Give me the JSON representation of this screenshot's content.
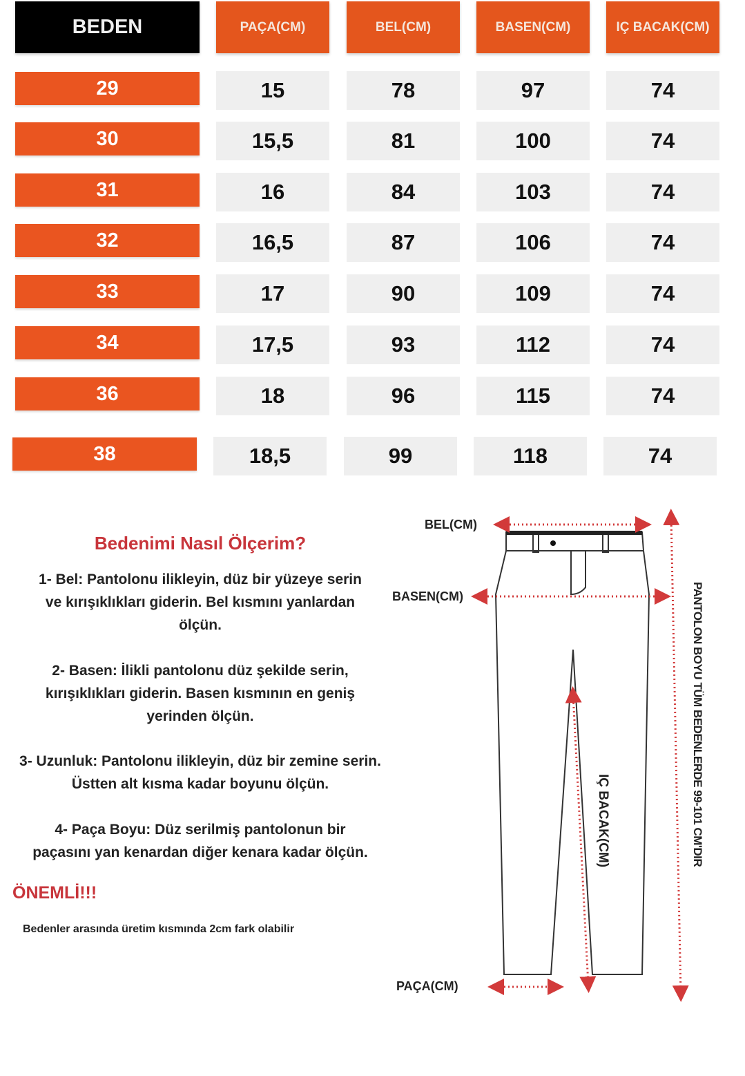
{
  "headers": [
    "BEDEN",
    "PAÇA(CM)",
    "BEL(CM)",
    "BASEN(CM)",
    "IÇ BACAK(CM)"
  ],
  "rows": [
    [
      "29",
      "15",
      "78",
      "97",
      "74"
    ],
    [
      "30",
      "15,5",
      "81",
      "100",
      "74"
    ],
    [
      "31",
      "16",
      "84",
      "103",
      "74"
    ],
    [
      "32",
      "16,5",
      "87",
      "106",
      "74"
    ],
    [
      "33",
      "17",
      "90",
      "109",
      "74"
    ],
    [
      "34",
      "17,5",
      "93",
      "112",
      "74"
    ],
    [
      "36",
      "18",
      "96",
      "115",
      "74"
    ],
    [
      "38",
      "18,5",
      "99",
      "118",
      "74"
    ]
  ],
  "guide": {
    "title": "Bedenimi  Nasıl Ölçerim?",
    "steps": [
      "1- Bel: Pantolonu ilikleyin, düz bir yüzeye serin ve kırışıklıkları giderin. Bel kısmını yanlardan ölçün.",
      "2- Basen: İlikli pantolonu düz şekilde serin, kırışıklıkları giderin. Basen kısmının en geniş yerinden ölçün.",
      "3- Uzunluk: Pantolonu ilikleyin, düz bir zemine serin. Üstten alt kısma kadar boyunu ölçün.",
      "4- Paça Boyu: Düz serilmiş pantolonun bir paçasını yan kenardan diğer kenara kadar ölçün."
    ],
    "important": "ÖNEMLİ!!!",
    "note": "Bedenler arasında üretim kısmında 2cm fark olabilir"
  },
  "diagram": {
    "bel": "BEL(CM)",
    "basen": "BASEN(CM)",
    "paca": "PAÇA(CM)",
    "ic_bacak": "IÇ BACAK(CM)",
    "length": "PANTOLON BOYU TÜM BEDENLERDE 99-101 CM'DIR"
  },
  "colors": {
    "orange": "#ea5520",
    "red_title": "#c8353b",
    "arrow": "#d23a3a"
  }
}
